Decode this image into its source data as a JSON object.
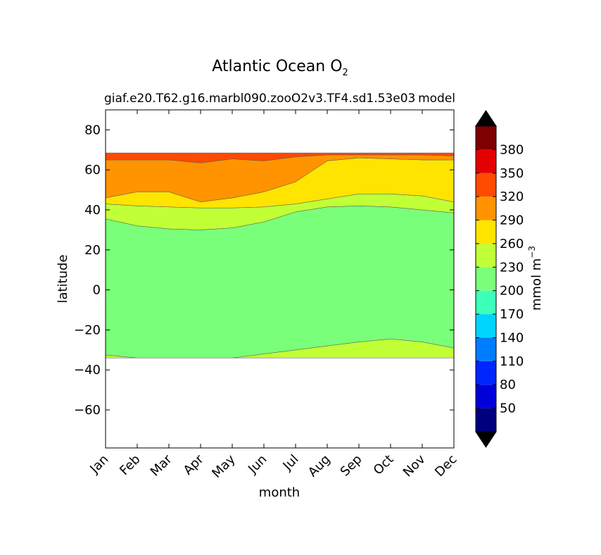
{
  "chart_data": {
    "type": "contour",
    "title": "Atlantic Ocean O",
    "title_subscript": "2",
    "subtitle_left": "giaf.e20.T62.g16.marbl090.zooO2v3.TF4.sd1.53e03",
    "subtitle_right": "model",
    "xlabel": "month",
    "ylabel": "latitude",
    "x_tick_labels": [
      "Jan",
      "Feb",
      "Mar",
      "Apr",
      "May",
      "Jun",
      "Jul",
      "Aug",
      "Sep",
      "Oct",
      "Nov",
      "Dec"
    ],
    "y_ticks": [
      -60,
      -40,
      -20,
      0,
      20,
      40,
      60,
      80
    ],
    "y_tick_labels": [
      "−60",
      "−40",
      "−20",
      "0",
      "20",
      "40",
      "60",
      "80"
    ],
    "ylim": [
      -79,
      90
    ],
    "colorbar": {
      "label": "mmol m",
      "label_superscript": "−3",
      "levels": [
        20,
        50,
        80,
        110,
        140,
        170,
        200,
        230,
        260,
        290,
        320,
        350,
        380,
        410
      ],
      "tick_labels": [
        "50",
        "80",
        "110",
        "140",
        "170",
        "200",
        "230",
        "260",
        "290",
        "320",
        "350",
        "380"
      ],
      "colors": [
        "#00007f",
        "#0000d9",
        "#0026ff",
        "#007cff",
        "#00d5ff",
        "#3cffba",
        "#7aff7a",
        "#c1ff36",
        "#ffe400",
        "#ff9400",
        "#ff4a00",
        "#e40000",
        "#7f0000"
      ],
      "extend": "both"
    },
    "contour_boundaries": {
      "south_data_edge": -34,
      "north_data_edge": 68.5,
      "band_230_260_southern_upper": [
        -32.5,
        -34,
        -34,
        -34,
        -34,
        -32,
        -30,
        -28,
        -26,
        -24.5,
        -26,
        -29
      ],
      "band_200_230_upper": [
        35.5,
        32,
        30.5,
        30,
        31,
        34,
        39,
        41.5,
        42,
        41.5,
        40,
        38.5
      ],
      "band_230_260_upper": [
        43,
        42,
        41.5,
        41,
        41,
        41.5,
        43,
        45.5,
        48,
        48,
        47,
        44
      ],
      "band_260_290_upper": [
        46,
        49,
        49,
        44,
        46,
        49,
        54,
        64.5,
        66,
        65.5,
        65,
        65
      ],
      "band_290_320_upper": [
        65,
        65,
        65,
        63.5,
        65.5,
        64.5,
        66.5,
        67.5,
        67.5,
        67.5,
        67.5,
        67
      ]
    }
  }
}
